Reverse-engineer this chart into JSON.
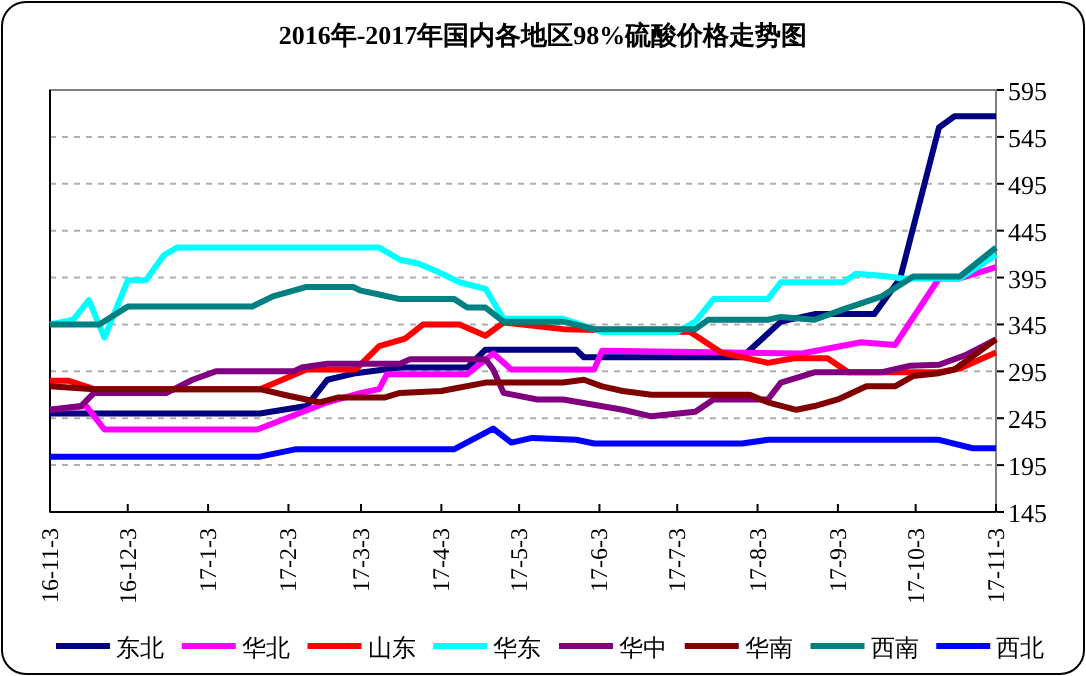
{
  "chart_data": {
    "type": "line",
    "title": "2016年-2017年国内各地区98%硫酸价格走势图",
    "grid": "y",
    "legend": "bottom",
    "xlim": [
      "2016-11-03",
      "2017-11-03"
    ],
    "xticks": [
      {
        "value": "2016-11-03",
        "label": "16-11-3"
      },
      {
        "value": "2016-12-03",
        "label": "16-12-3"
      },
      {
        "value": "2017-01-03",
        "label": "17-1-3"
      },
      {
        "value": "2017-02-03",
        "label": "17-2-3"
      },
      {
        "value": "2017-03-03",
        "label": "17-3-3"
      },
      {
        "value": "2017-04-03",
        "label": "17-4-3"
      },
      {
        "value": "2017-05-03",
        "label": "17-5-3"
      },
      {
        "value": "2017-06-03",
        "label": "17-6-3"
      },
      {
        "value": "2017-07-03",
        "label": "17-7-3"
      },
      {
        "value": "2017-08-03",
        "label": "17-8-3"
      },
      {
        "value": "2017-09-03",
        "label": "17-9-3"
      },
      {
        "value": "2017-10-03",
        "label": "17-10-3"
      },
      {
        "value": "2017-11-03",
        "label": "17-11-3"
      }
    ],
    "ylim": [
      145,
      595
    ],
    "yticks": [
      145,
      195,
      245,
      295,
      345,
      395,
      445,
      495,
      545,
      595
    ],
    "series": [
      {
        "name": "东北",
        "color": "#000080",
        "x": [
          "2016-11-03",
          "2017-01-23",
          "2017-02-10",
          "2017-02-18",
          "2017-03-01",
          "2017-03-18",
          "2017-04-13",
          "2017-04-20",
          "2017-05-25",
          "2017-05-28",
          "2017-07-28",
          "2017-08-12",
          "2017-08-25",
          "2017-09-17",
          "2017-09-27",
          "2017-10-12",
          "2017-10-18",
          "2017-11-03"
        ],
        "values": [
          250,
          250,
          258,
          286,
          293,
          299,
          299,
          318,
          318,
          310,
          310,
          348,
          356,
          356,
          394,
          555,
          567,
          567
        ]
      },
      {
        "name": "华北",
        "color": "#ff00ff",
        "x": [
          "2016-11-03",
          "2016-11-17",
          "2016-11-24",
          "2017-01-22",
          "2017-02-18",
          "2017-03-03",
          "2017-03-10",
          "2017-03-13",
          "2017-04-13",
          "2017-04-23",
          "2017-04-30",
          "2017-06-01",
          "2017-06-04",
          "2017-08-20",
          "2017-09-12",
          "2017-09-25",
          "2017-10-12",
          "2017-10-20",
          "2017-11-03"
        ],
        "values": [
          254,
          258,
          233,
          233,
          262,
          272,
          276,
          292,
          292,
          314,
          297,
          297,
          317,
          314,
          326,
          323,
          394,
          394,
          406
        ]
      },
      {
        "name": "山东",
        "color": "#ff0000",
        "x": [
          "2016-11-03",
          "2016-11-10",
          "2016-11-20",
          "2017-01-23",
          "2017-02-10",
          "2017-03-01",
          "2017-03-10",
          "2017-03-20",
          "2017-03-27",
          "2017-04-10",
          "2017-04-20",
          "2017-04-27",
          "2017-05-20",
          "2017-07-08",
          "2017-07-20",
          "2017-08-07",
          "2017-08-17",
          "2017-08-30",
          "2017-09-07",
          "2017-10-12",
          "2017-10-20",
          "2017-11-03"
        ],
        "values": [
          285,
          285,
          276,
          276,
          297,
          297,
          322,
          330,
          345,
          345,
          333,
          347,
          340,
          337,
          315,
          304,
          309,
          309,
          294,
          294,
          298,
          315
        ]
      },
      {
        "name": "华东",
        "color": "#00ffff",
        "x": [
          "2016-11-03",
          "2016-11-12",
          "2016-11-18",
          "2016-11-24",
          "2016-12-03",
          "2016-12-10",
          "2016-12-17",
          "2016-12-22",
          "2017-03-10",
          "2017-03-18",
          "2017-03-25",
          "2017-04-01",
          "2017-04-10",
          "2017-04-20",
          "2017-04-27",
          "2017-05-20",
          "2017-06-04",
          "2017-07-03",
          "2017-07-10",
          "2017-07-17",
          "2017-08-07",
          "2017-08-12",
          "2017-09-05",
          "2017-09-10",
          "2017-09-20",
          "2017-09-28",
          "2017-10-20",
          "2017-11-03"
        ],
        "values": [
          345,
          350,
          371,
          331,
          392,
          392,
          419,
          427,
          427,
          414,
          410,
          402,
          390,
          383,
          351,
          351,
          337,
          337,
          348,
          372,
          372,
          390,
          390,
          399,
          397,
          394,
          394,
          419
        ]
      },
      {
        "name": "华中",
        "color": "#800080",
        "x": [
          "2016-11-03",
          "2016-11-15",
          "2016-11-20",
          "2016-12-18",
          "2016-12-28",
          "2017-01-06",
          "2017-02-05",
          "2017-02-08",
          "2017-02-18",
          "2017-03-18",
          "2017-03-22",
          "2017-04-20",
          "2017-04-23",
          "2017-04-27",
          "2017-05-10",
          "2017-05-20",
          "2017-06-12",
          "2017-06-23",
          "2017-07-10",
          "2017-07-17",
          "2017-08-07",
          "2017-08-12",
          "2017-08-25",
          "2017-09-20",
          "2017-10-01",
          "2017-10-12",
          "2017-10-22",
          "2017-11-03"
        ],
        "values": [
          254,
          258,
          272,
          272,
          286,
          295,
          295,
          299,
          303,
          303,
          308,
          308,
          297,
          272,
          265,
          265,
          254,
          247,
          252,
          265,
          265,
          283,
          294,
          294,
          301,
          302,
          312,
          329
        ]
      },
      {
        "name": "华南",
        "color": "#800000",
        "x": [
          "2016-11-03",
          "2016-11-20",
          "2017-01-23",
          "2017-02-03",
          "2017-02-15",
          "2017-02-22",
          "2017-03-12",
          "2017-03-18",
          "2017-04-03",
          "2017-04-20",
          "2017-05-20",
          "2017-05-28",
          "2017-06-04",
          "2017-06-12",
          "2017-06-23",
          "2017-07-31",
          "2017-08-07",
          "2017-08-18",
          "2017-08-25",
          "2017-09-03",
          "2017-09-14",
          "2017-09-25",
          "2017-10-02",
          "2017-10-12",
          "2017-10-18",
          "2017-11-03"
        ],
        "values": [
          279,
          276,
          276,
          269,
          262,
          267,
          267,
          272,
          274,
          283,
          283,
          286,
          279,
          274,
          270,
          270,
          262,
          254,
          258,
          265,
          279,
          279,
          290,
          293,
          297,
          329
        ]
      },
      {
        "name": "西南",
        "color": "#008080",
        "x": [
          "2016-11-03",
          "2016-11-22",
          "2016-12-03",
          "2017-01-20",
          "2017-01-28",
          "2017-02-10",
          "2017-02-28",
          "2017-03-03",
          "2017-03-10",
          "2017-03-18",
          "2017-04-08",
          "2017-04-13",
          "2017-04-20",
          "2017-04-27",
          "2017-05-20",
          "2017-06-01",
          "2017-07-10",
          "2017-07-15",
          "2017-08-07",
          "2017-08-12",
          "2017-08-25",
          "2017-09-05",
          "2017-09-20",
          "2017-10-02",
          "2017-10-20",
          "2017-11-03"
        ],
        "values": [
          345,
          345,
          364,
          364,
          375,
          385,
          385,
          381,
          377,
          372,
          372,
          363,
          363,
          348,
          348,
          340,
          340,
          350,
          350,
          353,
          350,
          361,
          375,
          396,
          396,
          427
        ]
      },
      {
        "name": "西北",
        "color": "#0000ff",
        "x": [
          "2016-11-03",
          "2017-01-23",
          "2017-01-30",
          "2017-02-06",
          "2017-04-08",
          "2017-04-23",
          "2017-04-30",
          "2017-05-08",
          "2017-05-25",
          "2017-06-01",
          "2017-07-28",
          "2017-08-07",
          "2017-10-12",
          "2017-10-25",
          "2017-11-03"
        ],
        "values": [
          204,
          204,
          208,
          212,
          212,
          234,
          219,
          224,
          222,
          218,
          218,
          222,
          222,
          213,
          213
        ]
      }
    ]
  }
}
